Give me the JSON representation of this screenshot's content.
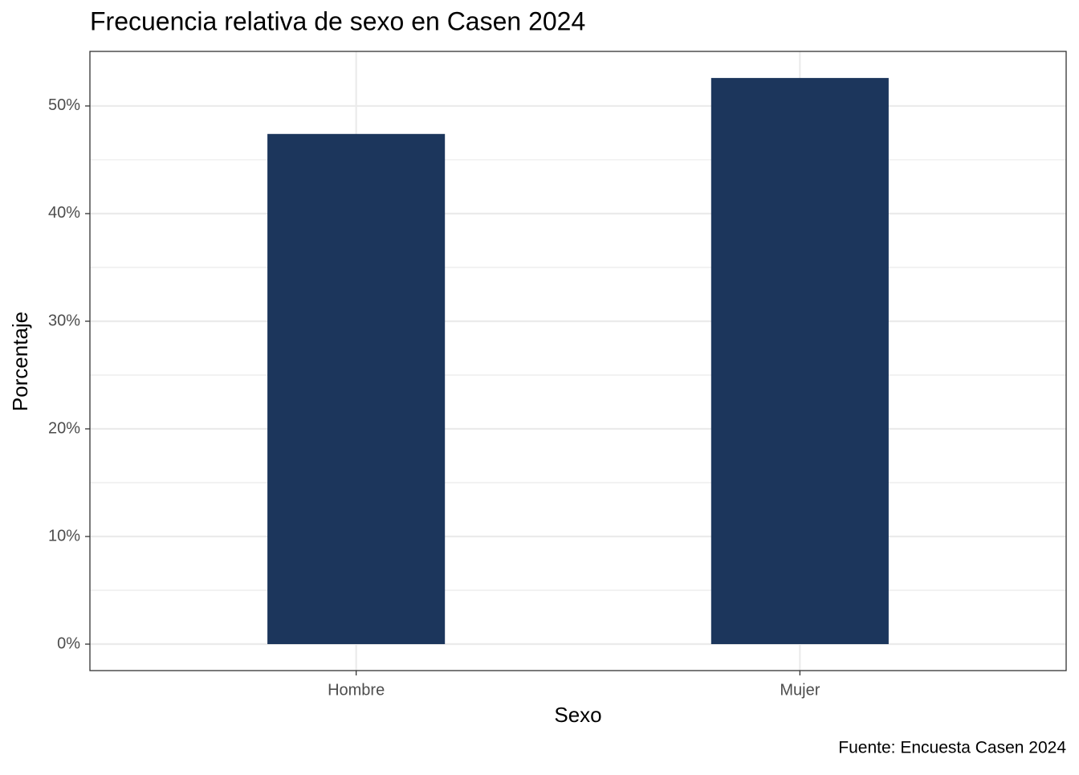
{
  "chart_data": {
    "type": "bar",
    "title": "Frecuencia relativa de sexo en Casen 2024",
    "x_label": "Sexo",
    "y_label": "Porcentaje",
    "caption": "Fuente: Encuesta Casen 2024",
    "categories": [
      "Hombre",
      "Mujer"
    ],
    "values": [
      47.4,
      52.6
    ],
    "color": "#1c365c",
    "ylim": [
      -2.46,
      55.07
    ],
    "yticks": [
      {
        "value": 0,
        "label": "0%"
      },
      {
        "value": 10,
        "label": "10%"
      },
      {
        "value": 20,
        "label": "20%"
      },
      {
        "value": 30,
        "label": "30%"
      },
      {
        "value": 40,
        "label": "40%"
      },
      {
        "value": 50,
        "label": "50%"
      }
    ],
    "yminorticks": [
      5,
      15,
      25,
      35,
      45
    ],
    "grid": true
  }
}
